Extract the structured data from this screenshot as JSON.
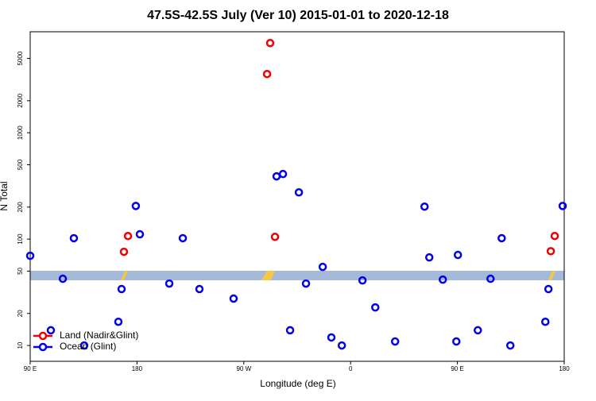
{
  "chart_data": {
    "type": "scatter",
    "title": "47.5S-42.5S July (Ver 10)   2015-01-01 to 2020-12-18",
    "x_label": "Longitude (deg E)",
    "y_label": "N Total",
    "xlim": [
      90,
      540
    ],
    "ylim": [
      7.1,
      8900
    ],
    "log_y": true,
    "xticks": [
      {
        "value": 90,
        "label": "90 E"
      },
      180,
      {
        "value": 270,
        "label": "90 W"
      },
      {
        "value": 360,
        "label": "0"
      },
      {
        "value": 450,
        "label": "90 E"
      },
      {
        "value": 540,
        "label": "180"
      }
    ],
    "yticks": [
      10,
      20,
      50,
      100,
      200,
      500,
      1000,
      2000,
      5000
    ],
    "legend": "bottom-left",
    "series": [
      {
        "name": "Land (Nadir&Glint)",
        "color": "#ee0000",
        "x": [
          169,
          172.4,
          289.6,
          292.2,
          296.3,
          528.7,
          532
        ],
        "values": [
          76,
          107,
          3565,
          6970,
          105,
          77,
          107
        ]
      },
      {
        "name": "Ocean (Glint)",
        "color": "#0000ee",
        "x": [
          90,
          107.4,
          117.5,
          126.8,
          135.5,
          164.3,
          167,
          179,
          182.4,
          207.2,
          218.6,
          232.6,
          261.4,
          297.6,
          303,
          309,
          316.4,
          322.4,
          336.5,
          343.8,
          352.6,
          370,
          380.8,
          397.5,
          422.3,
          426.3,
          437.7,
          450.4,
          449.1,
          467.2,
          477.9,
          487.3,
          494.6,
          524.1,
          526.7,
          538.7
        ],
        "values": [
          69.7,
          13.9,
          42.4,
          102,
          10,
          16.7,
          33.9,
          205,
          111,
          38.2,
          102,
          33.9,
          27.6,
          389,
          409,
          13.9,
          275,
          38.2,
          54.8,
          11.9,
          10,
          40.9,
          22.8,
          10.9,
          202,
          67.3,
          41.6,
          71,
          10.9,
          13.9,
          42.4,
          102,
          10,
          16.7,
          33.9,
          205
        ]
      }
    ]
  }
}
